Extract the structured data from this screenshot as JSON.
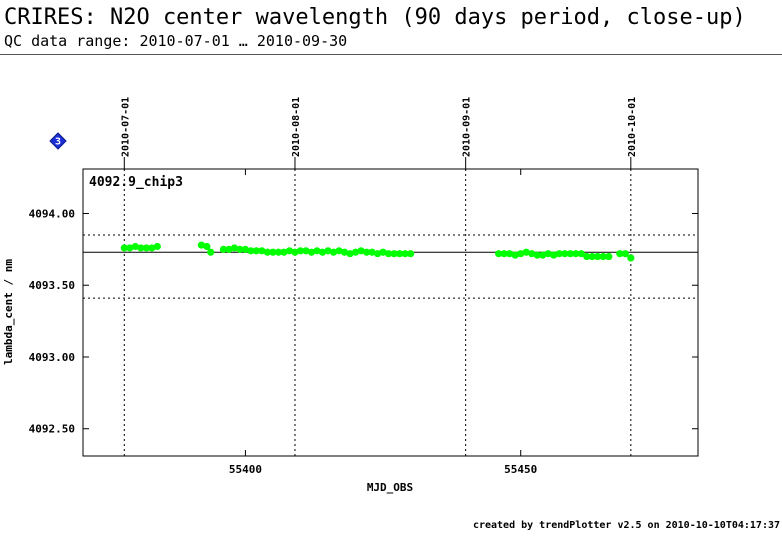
{
  "header": {
    "title": "CRIRES: N2O center wavelength (90 days period, close-up)",
    "subtitle": "QC data range: 2010-07-01 … 2010-09-30"
  },
  "footer": {
    "text": "created by trendPlotter v2.5 on 2010-10-10T04:17:37"
  },
  "badge": {
    "label": "3",
    "color": "#1a2fd6"
  },
  "colors": {
    "points": "#00ff00",
    "median": "#000000",
    "limits": "#000000",
    "dates": "#000000"
  },
  "chart_data": {
    "type": "scatter",
    "plot_label": "4092.9_chip3",
    "xlabel": "MJD_OBS",
    "ylabel": "lambda_cent / nm",
    "xlim": [
      55370.5,
      55482.2
    ],
    "ylim": [
      4092.31,
      4094.31
    ],
    "x_ticks": [
      55400,
      55450
    ],
    "x_tick_labels": [
      "55400",
      "55450"
    ],
    "y_ticks": [
      4092.5,
      4093.0,
      4093.5,
      4094.0
    ],
    "y_tick_labels": [
      "4092.50",
      "4093.00",
      "4093.50",
      "4094.00"
    ],
    "date_markers": [
      {
        "mjd": 55378,
        "label": "2010-07-01"
      },
      {
        "mjd": 55409,
        "label": "2010-08-01"
      },
      {
        "mjd": 55440,
        "label": "2010-09-01"
      },
      {
        "mjd": 55470,
        "label": "2010-10-01"
      }
    ],
    "median": 4093.73,
    "limits": [
      4093.41,
      4093.85
    ],
    "grid": false,
    "series": [
      {
        "x": [
          55378.0,
          55379.0,
          55380.0,
          55381.0,
          55382.0,
          55383.0,
          55384.0,
          55392.0,
          55393.0,
          55393.7,
          55396.0,
          55397.0,
          55398.0,
          55399.0,
          55400.0,
          55401.0,
          55402.0,
          55403.0,
          55404.0,
          55405.0,
          55406.0,
          55407.0,
          55408.0,
          55409.0,
          55410.0,
          55411.0,
          55412.0,
          55413.0,
          55414.0,
          55415.0,
          55416.0,
          55417.0,
          55418.0,
          55419.0,
          55420.0,
          55421.0,
          55422.0,
          55423.0,
          55424.0,
          55425.0,
          55426.0,
          55427.0,
          55428.0,
          55429.0,
          55430.0,
          55446.0,
          55447.0,
          55448.0,
          55449.0,
          55450.0,
          55451.0,
          55452.0,
          55453.0,
          55454.0,
          55455.0,
          55456.0,
          55457.0,
          55458.0,
          55459.0,
          55460.0,
          55461.0,
          55462.0,
          55463.0,
          55464.0,
          55465.0,
          55466.0,
          55468.0,
          55469.0,
          55470.0
        ],
        "y": [
          4093.76,
          4093.76,
          4093.77,
          4093.76,
          4093.76,
          4093.76,
          4093.77,
          4093.78,
          4093.77,
          4093.73,
          4093.75,
          4093.75,
          4093.76,
          4093.75,
          4093.75,
          4093.74,
          4093.74,
          4093.74,
          4093.73,
          4093.73,
          4093.73,
          4093.73,
          4093.74,
          4093.73,
          4093.74,
          4093.74,
          4093.73,
          4093.74,
          4093.73,
          4093.74,
          4093.73,
          4093.74,
          4093.73,
          4093.72,
          4093.73,
          4093.74,
          4093.73,
          4093.73,
          4093.72,
          4093.73,
          4093.72,
          4093.72,
          4093.72,
          4093.72,
          4093.72,
          4093.72,
          4093.72,
          4093.72,
          4093.71,
          4093.72,
          4093.73,
          4093.72,
          4093.71,
          4093.71,
          4093.72,
          4093.71,
          4093.72,
          4093.72,
          4093.72,
          4093.72,
          4093.72,
          4093.7,
          4093.7,
          4093.7,
          4093.7,
          4093.7,
          4093.72,
          4093.72,
          4093.69
        ]
      }
    ]
  }
}
